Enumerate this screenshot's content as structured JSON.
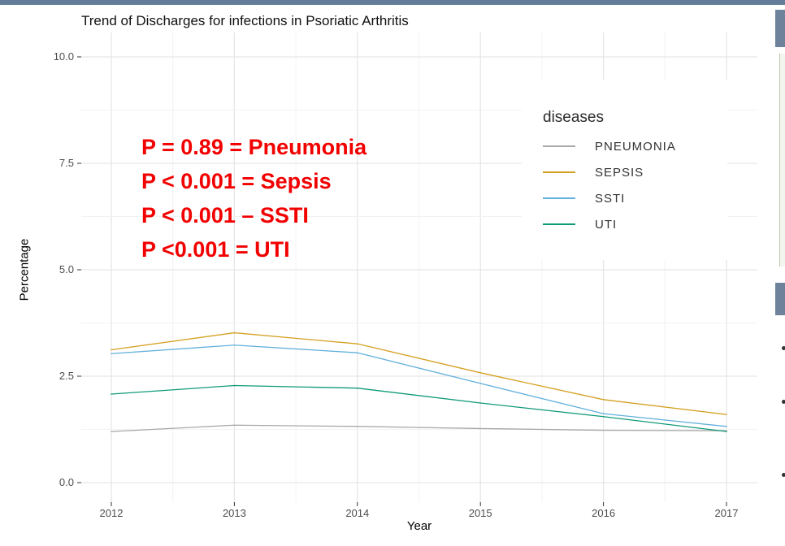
{
  "chart_data": {
    "type": "line",
    "title": "Trend of Discharges for infections in Psoriatic Arthritis",
    "xlabel": "Year",
    "ylabel": "Percentage",
    "x": [
      "2012",
      "2013",
      "2014",
      "2015",
      "2016",
      "2017"
    ],
    "yticks": [
      "0.0",
      "2.5",
      "5.0",
      "7.5",
      "10.0"
    ],
    "ylim": [
      0,
      10
    ],
    "grid": true,
    "legend_title": "diseases",
    "legend_position": "top-right",
    "series": [
      {
        "name": "PNEUMONIA",
        "color": "#a8a8a8",
        "values": [
          1.2,
          1.35,
          1.32,
          1.27,
          1.23,
          1.22
        ]
      },
      {
        "name": "SEPSIS",
        "color": "#d4a020",
        "values": [
          3.12,
          3.52,
          3.26,
          2.58,
          1.95,
          1.6
        ]
      },
      {
        "name": "SSTI",
        "color": "#62b0dc",
        "values": [
          3.03,
          3.23,
          3.05,
          2.33,
          1.62,
          1.32
        ]
      },
      {
        "name": "UTI",
        "color": "#0f9a78",
        "values": [
          2.08,
          2.28,
          2.22,
          1.87,
          1.55,
          1.2
        ]
      }
    ]
  },
  "annotations": [
    "P = 0.89 = Pneumonia",
    "P < 0.001 = Sepsis",
    "P < 0.001 – SSTI",
    "P <0.001 = UTI"
  ]
}
